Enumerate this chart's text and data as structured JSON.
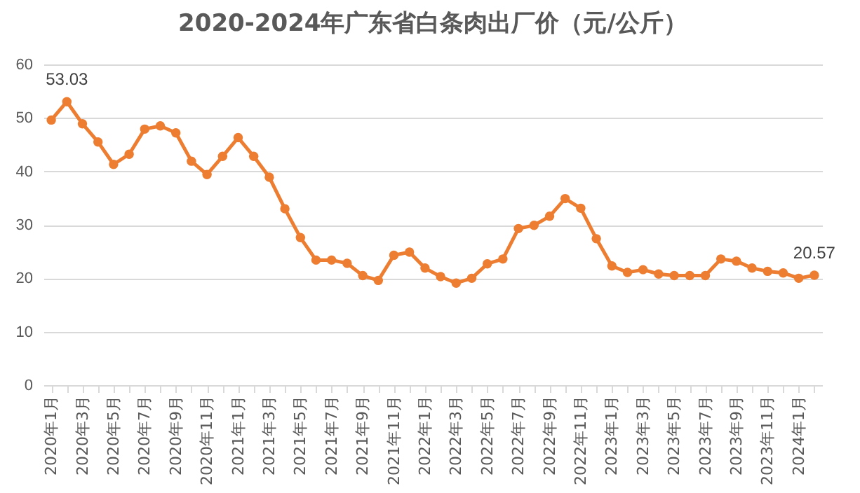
{
  "chart_data": {
    "type": "line",
    "title": "2020-2024年广东省白条肉出厂价（元/公斤）",
    "categories": [
      "2020年1月",
      null,
      "2020年3月",
      null,
      "2020年5月",
      null,
      "2020年7月",
      null,
      "2020年9月",
      null,
      "2020年11月",
      null,
      "2021年1月",
      null,
      "2021年3月",
      null,
      "2021年5月",
      null,
      "2021年7月",
      null,
      "2021年9月",
      null,
      "2021年11月",
      null,
      "2022年1月",
      null,
      "2022年3月",
      null,
      "2022年5月",
      null,
      "2022年7月",
      null,
      "2022年9月",
      null,
      "2022年11月",
      null,
      "2023年1月",
      null,
      "2023年3月",
      null,
      "2023年5月",
      null,
      "2023年7月",
      null,
      "2023年9月",
      null,
      "2023年11月",
      null,
      "2024年1月",
      null
    ],
    "series": [
      {
        "color": "#ed7d31",
        "values": [
          49.6,
          53.03,
          48.9,
          45.5,
          41.3,
          43.2,
          47.9,
          48.5,
          47.2,
          41.9,
          39.4,
          42.8,
          46.3,
          42.8,
          38.9,
          33.0,
          27.6,
          23.4,
          23.4,
          22.8,
          20.5,
          19.6,
          24.3,
          24.9,
          21.9,
          20.3,
          19.1,
          20.0,
          22.7,
          23.6,
          29.3,
          29.9,
          31.6,
          34.9,
          33.1,
          27.4,
          22.3,
          21.1,
          21.6,
          20.8,
          20.5,
          20.5,
          20.5,
          23.6,
          23.2,
          21.9,
          21.3,
          21.0,
          20.0,
          20.57
        ],
        "value_labels": [
          null,
          "53.03",
          null,
          null,
          null,
          null,
          null,
          null,
          null,
          null,
          null,
          null,
          null,
          null,
          null,
          null,
          null,
          null,
          null,
          null,
          null,
          null,
          null,
          null,
          null,
          null,
          null,
          null,
          null,
          null,
          null,
          null,
          null,
          null,
          null,
          null,
          null,
          null,
          null,
          null,
          null,
          null,
          null,
          null,
          null,
          null,
          null,
          null,
          null,
          "20.57"
        ]
      }
    ],
    "ylim": [
      0,
      60
    ],
    "yticks": [
      0,
      10,
      20,
      30,
      40,
      50,
      60
    ],
    "grid": "y",
    "marker": "circle",
    "line_style": "solid"
  }
}
